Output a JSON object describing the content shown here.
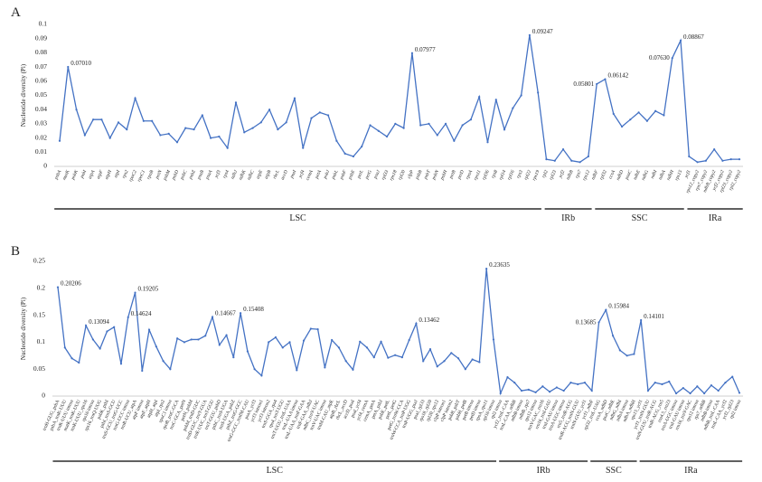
{
  "chart_data": [
    {
      "type": "line",
      "panel": "A",
      "y_label": "Nucleotide diversity (Pi)",
      "color": "#4472c4",
      "ylim": [
        0,
        0.1
      ],
      "yticks": [
        0,
        0.01,
        0.02,
        0.03,
        0.04,
        0.05,
        0.06,
        0.07,
        0.08,
        0.09,
        0.1
      ],
      "regions": [
        "LSC",
        "IRb",
        "SSC",
        "IRa"
      ],
      "categories": [
        "psbA",
        "matK",
        "psbK",
        "psbI",
        "atpA",
        "atpF",
        "atpH",
        "atpI",
        "rps2",
        "rpoC2",
        "rpoC1",
        "rpoB",
        "petN",
        "psbM",
        "psbD",
        "psbC",
        "psbZ",
        "psaB",
        "psaA",
        "ycf3",
        "rps4",
        "ndhJ",
        "ndhK",
        "ndhC",
        "atpE",
        "atpB",
        "rbcL",
        "accD",
        "psaI",
        "ycf4",
        "cemA",
        "petA",
        "psbJ",
        "psbL",
        "psbF",
        "psbE",
        "petL",
        "petG",
        "psaJ",
        "rpl33",
        "rps18",
        "rpl20",
        "clpP",
        "psbB",
        "psbT",
        "psbN",
        "psbH",
        "petB",
        "petD",
        "rpoA",
        "rps11",
        "rpl36",
        "rps8",
        "rpl14",
        "rpl16",
        "rps3",
        "rpl22",
        "rps19",
        "rpl2",
        "rpl23",
        "ycf2",
        "ndhB",
        "rps7",
        "rps12",
        "ndhF",
        "rpl32",
        "ccsA",
        "ndhD",
        "psaC",
        "ndhE",
        "ndhG",
        "ndhI",
        "ndhA",
        "ndhH",
        "rps15",
        "ycf1",
        "rps12_copy2",
        "rps7_copy2",
        "ndhB_copy2",
        "ycf2_copy2",
        "rpl23_copy2",
        "rpl2_copy2"
      ],
      "values": [
        0.018,
        0.0701,
        0.04,
        0.022,
        0.033,
        0.033,
        0.02,
        0.031,
        0.026,
        0.048,
        0.032,
        0.032,
        0.022,
        0.023,
        0.017,
        0.027,
        0.026,
        0.036,
        0.02,
        0.021,
        0.013,
        0.045,
        0.024,
        0.027,
        0.031,
        0.04,
        0.026,
        0.031,
        0.048,
        0.013,
        0.034,
        0.038,
        0.036,
        0.018,
        0.009,
        0.007,
        0.014,
        0.029,
        0.025,
        0.021,
        0.03,
        0.027,
        0.07977,
        0.029,
        0.03,
        0.022,
        0.03,
        0.018,
        0.029,
        0.033,
        0.049,
        0.017,
        0.047,
        0.026,
        0.041,
        0.05,
        0.09247,
        0.052,
        0.005,
        0.004,
        0.012,
        0.004,
        0.003,
        0.007,
        0.05801,
        0.06142,
        0.037,
        0.028,
        0.033,
        0.038,
        0.032,
        0.039,
        0.036,
        0.0763,
        0.08867,
        0.007,
        0.003,
        0.004,
        0.012,
        0.004,
        0.005,
        0.005
      ],
      "value_labels": [
        null,
        "0.07010",
        null,
        null,
        null,
        null,
        null,
        null,
        null,
        null,
        null,
        null,
        null,
        null,
        null,
        null,
        null,
        null,
        null,
        null,
        null,
        null,
        null,
        null,
        null,
        null,
        null,
        null,
        null,
        null,
        null,
        null,
        null,
        null,
        null,
        null,
        null,
        null,
        null,
        null,
        null,
        null,
        "0.07977",
        null,
        null,
        null,
        null,
        null,
        null,
        null,
        null,
        null,
        null,
        null,
        null,
        null,
        "0.09247",
        null,
        null,
        null,
        null,
        null,
        null,
        null,
        "0.05801",
        "0.06142",
        null,
        null,
        null,
        null,
        null,
        null,
        null,
        "0.07630",
        "0.08867",
        null,
        null,
        null,
        null,
        null,
        null,
        null
      ]
    },
    {
      "type": "line",
      "panel": "B",
      "y_label": "Nucleotide diversity (Pi)",
      "color": "#4472c4",
      "ylim": [
        0,
        0.25
      ],
      "yticks": [
        0,
        0.05,
        0.1,
        0.15,
        0.2,
        0.25
      ],
      "regions": [
        "LSC",
        "IRb",
        "SSC",
        "IRa"
      ],
      "categories": [
        "trnH-GUG_psbA",
        "psbA_trnK-UUU",
        "trnK-UUU intron",
        "matK_trnK-UUU",
        "trnK-UUU_rps16",
        "rps16 intron",
        "rps16_trnQ-UUG",
        "psbK_psbI",
        "psbI_trnS-GCU",
        "trnS-GCU_trnG-UCC",
        "trnG-UCC intron",
        "trnR-UCU_atpA",
        "atpF intron",
        "atpF_atpH",
        "atpH_atpI",
        "atpI_rps2",
        "rpoC1 intron",
        "rpoB_trnC-GCA",
        "trnC-GCA_petN",
        "petN_psbM",
        "psbM_trnD-GUC",
        "trnD-GUC_trnY-GUA",
        "trnE-UUC_trnT-GGU",
        "trnT-GGU_psbD",
        "psbC_trnS-UGA",
        "trnS-UGA_psbZ",
        "psbZ_trnG-GCC",
        "trnG-GCC_trnfM-CAU",
        "psaA_ycf3",
        "ycf3 intron1",
        "ycf3 intron2",
        "trnS-GGA_rps4",
        "rps4_trnT-UGU",
        "trnT-UGU_trnL-UAA",
        "trnL-UAA intron",
        "trnL-UAA_trnF-GAA",
        "trnF-GAA_ndhJ",
        "ndhC_trnV-UAC",
        "trnV-UAC intron",
        "trnM-CAU_atpE",
        "atpB_rbcL",
        "rbcL_accD",
        "accD_psaI",
        "psaI_ycf4",
        "ycf4_cemA",
        "cemA_petA",
        "petA_psbJ",
        "psbE_petL",
        "petL_petG",
        "petG_trnW-CCA",
        "trnW-CCA_trnP-UGG",
        "trnP-UGG_psaJ",
        "psaJ_rpl33",
        "rps18_rpl20",
        "rpl20_rps12",
        "clpP intron1",
        "clpP intron2",
        "psbB_psbT",
        "psbH_petB",
        "petB intron",
        "petD intron",
        "rpoA_rps11",
        "rpl16 intron",
        "rpl2 intron",
        "ycf2_trnL-CAA",
        "trnL-CAA_ndhB",
        "ndhB intron",
        "ndhB_rps7",
        "rps12 intron",
        "trnV-GAC_rrn16",
        "rrn16_trnI-GAU",
        "trnI-GAU intron",
        "trnA-UGC intron",
        "rrn5_trnR-ACG",
        "trnR-ACG_trnN-GUU",
        "trnN-GUU_ycf1",
        "ycf1_ndhF",
        "rpl32_trnL-UAG",
        "ccsA_ndhD",
        "psaC_ndhE",
        "ndhG_ndhI",
        "ndhA intron",
        "ndhA_ndhH",
        "rps15_ycf1",
        "ycf1_trnN-GUU",
        "trnN-GUU_trnR-ACG",
        "trnR-ACG_rrn5",
        "rrn4.5_rrn23",
        "trnA-UGC intron",
        "trnI-GAU intron",
        "rrn16_trnV-GAC",
        "rps12 intron",
        "rps7_ndhB",
        "ndhB intron",
        "ndhB_trnL-CAA",
        "trnL-CAA_ycf2",
        "ycf2_rpl23",
        "rpl2 intron"
      ],
      "values": [
        0.20206,
        0.09,
        0.07,
        0.062,
        0.13094,
        0.105,
        0.088,
        0.12,
        0.128,
        0.06,
        0.14624,
        0.19205,
        0.047,
        0.123,
        0.092,
        0.065,
        0.05,
        0.107,
        0.1,
        0.105,
        0.105,
        0.112,
        0.14667,
        0.095,
        0.113,
        0.072,
        0.15408,
        0.083,
        0.05,
        0.038,
        0.1,
        0.109,
        0.09,
        0.1,
        0.048,
        0.103,
        0.125,
        0.124,
        0.053,
        0.104,
        0.09,
        0.065,
        0.049,
        0.101,
        0.09,
        0.072,
        0.101,
        0.071,
        0.076,
        0.072,
        0.104,
        0.13462,
        0.065,
        0.087,
        0.055,
        0.065,
        0.08,
        0.07,
        0.05,
        0.068,
        0.063,
        0.23635,
        0.105,
        0.005,
        0.035,
        0.025,
        0.01,
        0.012,
        0.007,
        0.018,
        0.008,
        0.016,
        0.01,
        0.025,
        0.022,
        0.025,
        0.01,
        0.13685,
        0.15984,
        0.112,
        0.085,
        0.075,
        0.078,
        0.14101,
        0.01,
        0.025,
        0.022,
        0.027,
        0.005,
        0.015,
        0.005,
        0.018,
        0.005,
        0.02,
        0.01,
        0.025,
        0.036,
        0.006
      ],
      "value_labels": [
        "0.20206",
        null,
        null,
        null,
        "0.13094",
        null,
        null,
        null,
        null,
        null,
        "0.14624",
        "0.19205",
        null,
        null,
        null,
        null,
        null,
        null,
        null,
        null,
        null,
        null,
        "0.14667",
        null,
        null,
        null,
        "0.15408",
        null,
        null,
        null,
        null,
        null,
        null,
        null,
        null,
        null,
        null,
        null,
        null,
        null,
        null,
        null,
        null,
        null,
        null,
        null,
        null,
        null,
        null,
        null,
        null,
        "0.13462",
        null,
        null,
        null,
        null,
        null,
        null,
        null,
        null,
        null,
        "0.23635",
        null,
        null,
        null,
        null,
        null,
        null,
        null,
        null,
        null,
        null,
        null,
        null,
        null,
        null,
        null,
        "0.13685",
        "0.15984",
        null,
        null,
        null,
        null,
        "0.14101",
        null,
        null,
        null,
        null,
        null,
        null,
        null,
        null,
        null,
        null,
        null,
        null,
        null,
        null
      ]
    }
  ]
}
